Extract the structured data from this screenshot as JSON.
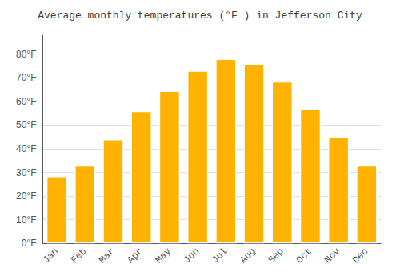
{
  "chart_data": {
    "type": "bar",
    "title": "Average monthly temperatures (°F ) in Jefferson City",
    "categories": [
      "Jan",
      "Feb",
      "Mar",
      "Apr",
      "May",
      "Jun",
      "Jul",
      "Aug",
      "Sep",
      "Oct",
      "Nov",
      "Dec"
    ],
    "values": [
      28.5,
      33,
      44,
      56,
      64.5,
      73,
      78,
      76,
      68.5,
      57,
      45,
      33
    ],
    "color": "#FFB300",
    "ylim": [
      0,
      88
    ],
    "yticks": [
      {
        "value": 0,
        "label": "0°F"
      },
      {
        "value": 10,
        "label": "10°F"
      },
      {
        "value": 20,
        "label": "20°F"
      },
      {
        "value": 30,
        "label": "30°F"
      },
      {
        "value": 40,
        "label": "40°F"
      },
      {
        "value": 50,
        "label": "50°F"
      },
      {
        "value": 60,
        "label": "60°F"
      },
      {
        "value": 70,
        "label": "70°F"
      },
      {
        "value": 80,
        "label": "80°F"
      }
    ],
    "grid": true
  }
}
